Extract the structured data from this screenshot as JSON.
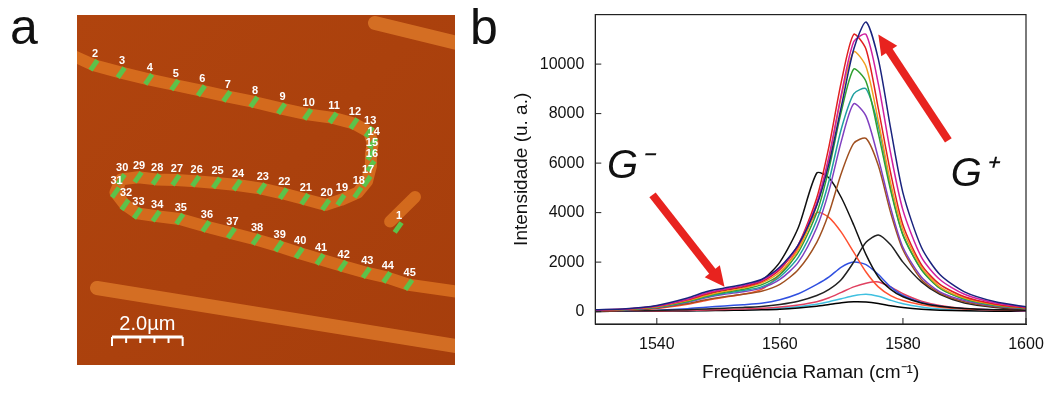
{
  "chart_data": [
    {
      "panel": "a",
      "type": "scatter",
      "x": [
        9.09,
        0.48,
        1.25,
        2.03,
        2.77,
        3.52,
        4.24,
        5.01,
        5.79,
        6.53,
        7.25,
        7.84,
        8.27,
        8.37,
        8.32,
        8.32,
        8.21,
        7.95,
        7.47,
        7.04,
        6.45,
        5.84,
        5.23,
        4.53,
        3.95,
        3.36,
        2.8,
        2.24,
        1.73,
        1.25,
        1.09,
        1.36,
        1.71,
        2.24,
        2.91,
        3.65,
        4.37,
        5.07,
        5.71,
        6.29,
        6.88,
        7.52,
        8.19,
        8.77,
        9.39
      ],
      "y": [
        3.89,
        8.48,
        8.27,
        8.08,
        7.92,
        7.76,
        7.6,
        7.44,
        7.25,
        7.09,
        6.99,
        6.83,
        6.59,
        6.27,
        5.95,
        5.63,
        5.2,
        4.88,
        4.67,
        4.53,
        4.69,
        4.85,
        4.99,
        5.09,
        5.15,
        5.2,
        5.23,
        5.25,
        5.31,
        5.25,
        4.88,
        4.53,
        4.29,
        4.21,
        4.13,
        3.92,
        3.73,
        3.55,
        3.36,
        3.17,
        2.99,
        2.8,
        2.61,
        2.48,
        2.27
      ],
      "point_labels": [
        "1",
        "2",
        "3",
        "4",
        "5",
        "6",
        "7",
        "8",
        "9",
        "10",
        "11",
        "12",
        "13",
        "14",
        "15",
        "16",
        "17",
        "18",
        "19",
        "20",
        "21",
        "22",
        "23",
        "24",
        "25",
        "26",
        "27",
        "28",
        "29",
        "30",
        "31",
        "32",
        "33",
        "34",
        "35",
        "36",
        "37",
        "38",
        "39",
        "40",
        "41",
        "42",
        "43",
        "44",
        "45"
      ],
      "xlim": [
        0,
        10.7
      ],
      "ylim": [
        0,
        9.9
      ],
      "tick_labels": false,
      "color": "#5cc24a",
      "marker": "line",
      "scale_bar": {
        "length": 2.0,
        "label": "2.0µm"
      }
    },
    {
      "panel": "b",
      "type": "line",
      "x_label": "Freqüência Raman (cm⁻¹)",
      "y_label": "Intensidade (u. a.)",
      "x": [
        1530,
        1535,
        1540,
        1545,
        1548,
        1551,
        1554,
        1557,
        1560,
        1563,
        1566,
        1568,
        1570,
        1572,
        1574,
        1576,
        1578,
        1580,
        1583,
        1586,
        1590,
        1595,
        1600
      ],
      "series": [
        {
          "color": "#1a237e",
          "values": [
            80,
            120,
            250,
            550,
            800,
            950,
            1100,
            1300,
            1800,
            2700,
            4300,
            6000,
            8300,
            10600,
            11700,
            10200,
            7400,
            4800,
            2600,
            1500,
            800,
            400,
            200
          ]
        },
        {
          "color": "#d020a0",
          "values": [
            70,
            110,
            230,
            500,
            750,
            900,
            1050,
            1250,
            1750,
            2700,
            4400,
            6300,
            8800,
            10900,
            11200,
            9200,
            6400,
            4100,
            2200,
            1300,
            700,
            350,
            180
          ]
        },
        {
          "color": "#e02020",
          "values": [
            60,
            100,
            220,
            480,
            700,
            880,
            1000,
            1200,
            1700,
            2700,
            4600,
            6700,
            9300,
            11200,
            10600,
            8200,
            5600,
            3500,
            1900,
            1100,
            600,
            300,
            150
          ]
        },
        {
          "color": "#f0a020",
          "values": [
            60,
            100,
            200,
            450,
            650,
            820,
            950,
            1150,
            1600,
            2500,
            4300,
            6200,
            8700,
            10500,
            9900,
            7700,
            5200,
            3300,
            1800,
            1000,
            550,
            280,
            150
          ]
        },
        {
          "color": "#30a030",
          "values": [
            50,
            90,
            190,
            420,
            620,
            780,
            900,
            1080,
            1500,
            2400,
            4000,
            5800,
            8100,
            9800,
            9300,
            7200,
            4900,
            3100,
            1700,
            950,
            520,
            260,
            140
          ]
        },
        {
          "color": "#20a0a0",
          "values": [
            50,
            90,
            180,
            400,
            590,
            740,
            850,
            1000,
            1400,
            2200,
            3700,
            5300,
            7400,
            8800,
            9000,
            7500,
            5000,
            3100,
            1700,
            950,
            500,
            250,
            130
          ]
        },
        {
          "color": "#8040c0",
          "values": [
            50,
            80,
            170,
            380,
            560,
            700,
            800,
            950,
            1300,
            2000,
            3400,
            4900,
            6900,
            8400,
            7900,
            6200,
            4200,
            2600,
            1400,
            800,
            450,
            230,
            120
          ]
        },
        {
          "color": "#a05020",
          "values": [
            40,
            70,
            150,
            330,
            480,
            600,
            700,
            820,
            1100,
            1700,
            2800,
            4000,
            5600,
            6800,
            7000,
            5900,
            4000,
            2500,
            1300,
            750,
            400,
            200,
            110
          ]
        },
        {
          "color": "#111111",
          "values": [
            40,
            70,
            160,
            400,
            650,
            850,
            1000,
            1250,
            2000,
            3400,
            5600,
            5400,
            4600,
            3500,
            2300,
            1400,
            900,
            600,
            350,
            220,
            130,
            80,
            60
          ]
        },
        {
          "color": "#ff5030",
          "values": [
            30,
            60,
            130,
            300,
            450,
            580,
            700,
            900,
            1500,
            2600,
            4000,
            3800,
            3200,
            2400,
            1600,
            1000,
            650,
            450,
            280,
            180,
            110,
            70,
            50
          ]
        },
        {
          "color": "#222222",
          "values": [
            20,
            30,
            50,
            80,
            110,
            140,
            170,
            210,
            290,
            420,
            650,
            900,
            1300,
            2000,
            2800,
            3100,
            2700,
            2000,
            1200,
            700,
            350,
            170,
            90
          ]
        },
        {
          "color": "#3050e0",
          "values": [
            20,
            30,
            60,
            120,
            180,
            230,
            280,
            340,
            480,
            720,
            1100,
            1400,
            1800,
            2000,
            1900,
            1500,
            1000,
            650,
            370,
            220,
            120,
            70,
            40
          ]
        },
        {
          "color": "#e04060",
          "values": [
            10,
            20,
            30,
            50,
            70,
            90,
            110,
            140,
            190,
            270,
            400,
            560,
            780,
            1000,
            1150,
            1200,
            1000,
            720,
            420,
            250,
            130,
            70,
            40
          ]
        },
        {
          "color": "#000000",
          "values": [
            10,
            15,
            20,
            30,
            40,
            50,
            60,
            75,
            100,
            150,
            220,
            290,
            360,
            400,
            390,
            330,
            240,
            170,
            100,
            60,
            35,
            20,
            15
          ]
        },
        {
          "color": "#40c0e0",
          "values": [
            10,
            15,
            25,
            40,
            55,
            70,
            85,
            100,
            140,
            200,
            300,
            400,
            520,
            640,
            700,
            620,
            460,
            320,
            190,
            110,
            60,
            30,
            20
          ]
        }
      ],
      "xlim": [
        1530,
        1600
      ],
      "xticks": [
        1540,
        1560,
        1580,
        1600
      ],
      "ylim": [
        -500,
        12000
      ],
      "yticks": [
        0,
        2000,
        4000,
        6000,
        8000,
        10000
      ],
      "grid": false,
      "annotations": [
        {
          "text": "G⁻",
          "x": 1551,
          "y": 1000
        },
        {
          "text": "G⁺",
          "x": 1576,
          "y": 11200
        }
      ]
    }
  ]
}
